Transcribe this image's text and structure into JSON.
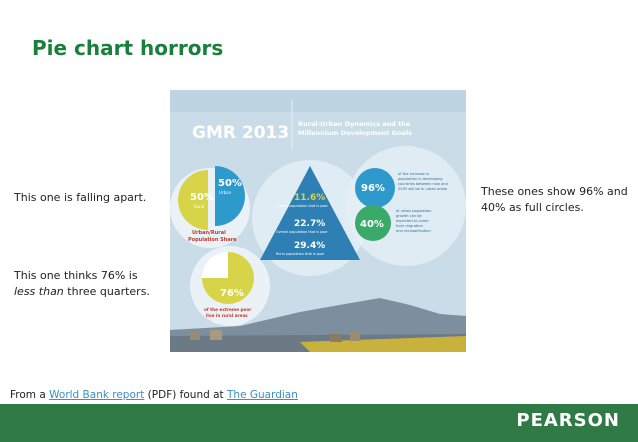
{
  "slide": {
    "title": "Pie chart horrors",
    "notes": {
      "left_top": "This one is falling apart.",
      "left_bottom_line1": "This one thinks 76% is",
      "left_bottom_em": "less than",
      "left_bottom_rest": " three quarters.",
      "right": "These ones show 96% and 40% as full circles."
    },
    "source": {
      "prefix": "From a ",
      "link1": "World Bank report",
      "middle": " (PDF) found at ",
      "link2": "The Guardian"
    },
    "footer_logo": "PEARSON"
  },
  "infographic": {
    "header_title": "GMR 2013",
    "header_subtitle_line1": "Rural-Urban Dynamics and the",
    "header_subtitle_line2": "Millennium Development Goals",
    "pie1": {
      "top_pct": "50%",
      "top_label": "Urban",
      "bottom_pct": "50%",
      "bottom_label": "Rural",
      "caption_line1": "Urban/Rural",
      "caption_line2": "Population Share"
    },
    "triangle": {
      "v1": "11.6%",
      "v1_label": "Urban population that is poor",
      "v2": "22.7%",
      "v2_label": "Overall population that is poor",
      "v3": "29.4%",
      "v3_label": "Rural population that is poor"
    },
    "pie2": {
      "pct": "76%",
      "caption_line1": "of the extreme poor",
      "caption_line2": "live in rural areas"
    },
    "circle96": {
      "pct": "96%",
      "text_line1": "of the increase in",
      "text_line2": "population in developing",
      "text_line3": "countries between now and",
      "text_line4": "2050 will be in urban areas"
    },
    "circle40": {
      "pct": "40%",
      "text_line1": "of urban population",
      "text_line2": "growth can be",
      "text_line3": "expected to come",
      "text_line4": "from migration",
      "text_line5": "and reclassification"
    }
  },
  "colors": {
    "title": "#1a7f3c",
    "footer": "#2f7a45",
    "infographic_bg": "#c9dce8",
    "blue": "#2e9acb",
    "yellow": "#d8d44a",
    "white_circle": "#f4f8fb"
  }
}
